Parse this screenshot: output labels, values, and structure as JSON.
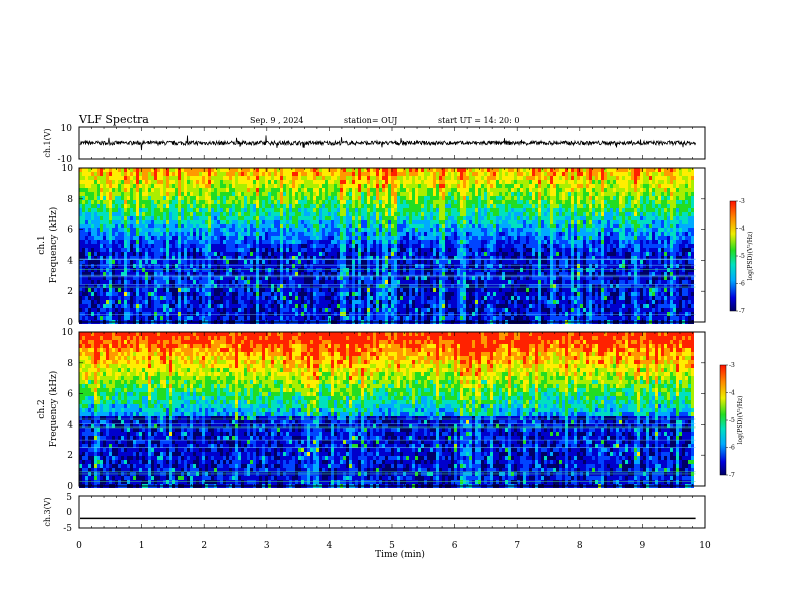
{
  "header": {
    "title": "VLF Spectra",
    "date": "Sep. 9 , 2024",
    "station": "station= OUJ",
    "start": "start UT =  14: 20: 0"
  },
  "chart_data": [
    {
      "type": "line",
      "id": "ch1-waveform",
      "ylabel": "ch.1(V)",
      "ylim": [
        -10,
        10
      ],
      "ytick_labels": [
        "10",
        "-10"
      ],
      "baseline_value": 0
    },
    {
      "type": "heatmap",
      "id": "ch1-spectrogram",
      "ylabel_top": "ch.1",
      "ylabel": "Frequency (kHz)",
      "ylim": [
        0,
        10
      ],
      "yticks": [
        0,
        2,
        4,
        6,
        8,
        10
      ],
      "colorbar": {
        "label": "log(PSD)(V²/Hz)",
        "range": [
          -7,
          -3
        ],
        "ticks": [
          "-3",
          "-4",
          "-5",
          "-6",
          "-7"
        ]
      }
    },
    {
      "type": "heatmap",
      "id": "ch2-spectrogram",
      "ylabel_top": "ch.2",
      "ylabel": "Frequency (kHz)",
      "ylim": [
        0,
        10
      ],
      "yticks": [
        0,
        2,
        4,
        6,
        8,
        10
      ],
      "colorbar": {
        "label": "log(PSD)(V²/Hz)",
        "range": [
          -7,
          -3
        ],
        "ticks": [
          "-3",
          "-4",
          "-5",
          "-6",
          "-7"
        ]
      }
    },
    {
      "type": "line",
      "id": "ch3-waveform",
      "ylabel": "ch.3(V)",
      "ylim": [
        -5,
        5
      ],
      "ytick_labels": [
        "5",
        "0",
        "-5"
      ],
      "baseline_value": -2
    }
  ],
  "x_axis": {
    "xlabel": "Time (min)",
    "xlim": [
      0,
      10
    ],
    "ticks": [
      "0",
      "1",
      "2",
      "3",
      "4",
      "5",
      "6",
      "7",
      "8",
      "9",
      "10"
    ],
    "data_end": 9.85
  },
  "colormap": [
    "#000066",
    "#0000cc",
    "#0044ff",
    "#00aaff",
    "#00e0c0",
    "#22dd22",
    "#aaee00",
    "#ffee00",
    "#ff9900",
    "#ff2200"
  ]
}
